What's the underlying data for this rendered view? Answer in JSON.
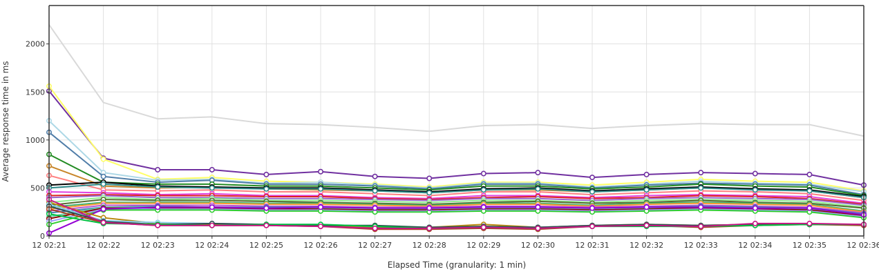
{
  "chart_data": {
    "type": "line",
    "xlabel": "Elapsed Time (granularity: 1 min)",
    "ylabel": "Average response time in ms",
    "ylim": [
      0,
      2400
    ],
    "yticks": [
      0,
      500,
      1000,
      1500,
      2000
    ],
    "grid": true,
    "categories": [
      "12 02:21",
      "12 02:22",
      "12 02:23",
      "12 02:24",
      "12 02:25",
      "12 02:26",
      "12 02:27",
      "12 02:28",
      "12 02:29",
      "12 02:30",
      "12 02:31",
      "12 02:32",
      "12 02:33",
      "12 02:34",
      "12 02:35",
      "12 02:36"
    ],
    "series": [
      {
        "color": "#d9d9d9",
        "markers": false,
        "values": [
          2200,
          1390,
          1220,
          1240,
          1170,
          1160,
          1130,
          1090,
          1150,
          1160,
          1120,
          1150,
          1170,
          1160,
          1160,
          1040
        ]
      },
      {
        "color": "#7030a0",
        "markers": true,
        "values": [
          1510,
          810,
          690,
          690,
          640,
          670,
          620,
          600,
          650,
          660,
          610,
          640,
          660,
          650,
          640,
          530
        ]
      },
      {
        "color": "#ffff66",
        "markers": true,
        "values": [
          1560,
          800,
          590,
          610,
          570,
          560,
          540,
          510,
          560,
          560,
          530,
          560,
          590,
          570,
          560,
          470
        ]
      },
      {
        "color": "#add8e6",
        "markers": true,
        "values": [
          1200,
          660,
          580,
          590,
          550,
          560,
          530,
          500,
          550,
          550,
          510,
          540,
          570,
          550,
          540,
          460
        ]
      },
      {
        "color": "#4f7da8",
        "markers": true,
        "values": [
          1080,
          620,
          560,
          580,
          540,
          540,
          520,
          490,
          540,
          540,
          500,
          530,
          550,
          540,
          530,
          430
        ]
      },
      {
        "color": "#228b22",
        "markers": true,
        "values": [
          850,
          560,
          540,
          540,
          520,
          520,
          500,
          480,
          520,
          520,
          490,
          510,
          540,
          520,
          510,
          420
        ]
      },
      {
        "color": "#c8862a",
        "markers": true,
        "values": [
          730,
          520,
          500,
          510,
          490,
          480,
          470,
          450,
          480,
          480,
          460,
          480,
          500,
          490,
          470,
          400
        ]
      },
      {
        "color": "#ff7f7f",
        "markers": true,
        "values": [
          630,
          480,
          470,
          480,
          460,
          460,
          440,
          420,
          460,
          460,
          430,
          450,
          470,
          460,
          440,
          370
        ]
      },
      {
        "color": "#000000",
        "markers": true,
        "values": [
          530,
          560,
          520,
          510,
          500,
          500,
          480,
          460,
          490,
          500,
          470,
          490,
          510,
          490,
          480,
          410
        ]
      },
      {
        "color": "#2e8b8b",
        "markers": true,
        "values": [
          500,
          540,
          510,
          500,
          490,
          490,
          470,
          450,
          480,
          490,
          460,
          480,
          500,
          480,
          470,
          400
        ]
      },
      {
        "color": "#e040e0",
        "markers": true,
        "values": [
          460,
          450,
          430,
          440,
          420,
          420,
          400,
          390,
          420,
          420,
          400,
          420,
          430,
          420,
          410,
          340
        ]
      },
      {
        "color": "#dd2222",
        "markers": true,
        "values": [
          420,
          430,
          420,
          420,
          410,
          410,
          390,
          380,
          400,
          410,
          390,
          400,
          420,
          410,
          390,
          330
        ]
      },
      {
        "color": "#9966cc",
        "markers": true,
        "values": [
          400,
          420,
          400,
          400,
          390,
          390,
          380,
          370,
          390,
          390,
          370,
          390,
          400,
          390,
          380,
          320
        ]
      },
      {
        "color": "#90ee90",
        "markers": true,
        "values": [
          350,
          400,
          380,
          390,
          370,
          370,
          360,
          350,
          370,
          370,
          350,
          370,
          380,
          370,
          360,
          300
        ]
      },
      {
        "color": "#556b2f",
        "markers": true,
        "values": [
          320,
          380,
          370,
          370,
          360,
          350,
          340,
          330,
          350,
          360,
          340,
          350,
          370,
          350,
          340,
          290
        ]
      },
      {
        "color": "#3cb371",
        "markers": true,
        "values": [
          300,
          350,
          350,
          350,
          340,
          340,
          330,
          320,
          340,
          340,
          320,
          340,
          350,
          340,
          330,
          260
        ]
      },
      {
        "color": "#ff9933",
        "markers": true,
        "values": [
          280,
          340,
          340,
          340,
          330,
          330,
          320,
          310,
          330,
          330,
          310,
          330,
          340,
          330,
          320,
          250
        ]
      },
      {
        "color": "#ba55d3",
        "markers": true,
        "values": [
          260,
          320,
          320,
          320,
          310,
          310,
          300,
          300,
          310,
          310,
          300,
          310,
          320,
          310,
          300,
          240
        ]
      },
      {
        "color": "#4682b4",
        "markers": true,
        "values": [
          240,
          300,
          310,
          300,
          300,
          300,
          290,
          280,
          300,
          300,
          280,
          300,
          310,
          300,
          290,
          230
        ]
      },
      {
        "color": "#66cdaa",
        "markers": true,
        "values": [
          200,
          300,
          300,
          300,
          290,
          290,
          280,
          280,
          290,
          290,
          280,
          290,
          300,
          290,
          280,
          220
        ]
      },
      {
        "color": "#8b0000",
        "markers": true,
        "values": [
          180,
          290,
          290,
          290,
          280,
          280,
          270,
          270,
          280,
          280,
          270,
          280,
          290,
          280,
          270,
          210
        ]
      },
      {
        "color": "#a0a0ff",
        "markers": true,
        "values": [
          150,
          280,
          280,
          280,
          270,
          270,
          260,
          260,
          270,
          270,
          260,
          270,
          280,
          270,
          260,
          200
        ]
      },
      {
        "color": "#32cd32",
        "markers": true,
        "values": [
          120,
          270,
          270,
          270,
          260,
          260,
          250,
          250,
          260,
          260,
          250,
          260,
          270,
          260,
          250,
          190
        ]
      },
      {
        "color": "#9400d3",
        "markers": true,
        "values": [
          30,
          280,
          300,
          300,
          290,
          300,
          290,
          290,
          300,
          300,
          290,
          300,
          300,
          290,
          290,
          220
        ]
      },
      {
        "color": "#b8860b",
        "markers": true,
        "values": [
          350,
          190,
          130,
          120,
          120,
          110,
          90,
          90,
          120,
          90,
          110,
          120,
          110,
          120,
          120,
          120
        ]
      },
      {
        "color": "#87ceeb",
        "markers": true,
        "values": [
          330,
          160,
          140,
          130,
          120,
          120,
          100,
          90,
          100,
          90,
          110,
          110,
          100,
          120,
          120,
          120
        ]
      },
      {
        "color": "#2f4f4f",
        "markers": true,
        "values": [
          310,
          150,
          120,
          130,
          120,
          110,
          110,
          90,
          100,
          90,
          110,
          120,
          110,
          120,
          120,
          120
        ]
      },
      {
        "color": "#aa4422",
        "markers": true,
        "values": [
          280,
          140,
          110,
          110,
          110,
          100,
          70,
          70,
          80,
          70,
          100,
          110,
          90,
          110,
          120,
          110
        ]
      },
      {
        "color": "#00c040",
        "markers": true,
        "values": [
          230,
          130,
          120,
          110,
          120,
          120,
          100,
          80,
          90,
          80,
          100,
          100,
          100,
          110,
          120,
          120
        ]
      },
      {
        "color": "#c71585",
        "markers": true,
        "values": [
          380,
          140,
          110,
          110,
          110,
          100,
          80,
          80,
          90,
          80,
          100,
          110,
          100,
          130,
          130,
          120
        ]
      }
    ]
  }
}
